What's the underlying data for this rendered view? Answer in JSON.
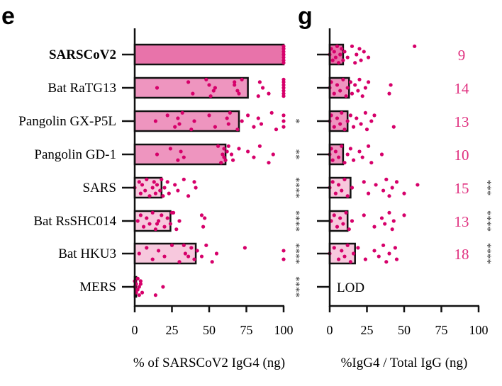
{
  "colors": {
    "dot": "#d6006a",
    "bar_dark": "#e873aa",
    "bar_mid": "#ee95bf",
    "bar_light": "#f7c8dd",
    "count": "#e0307f"
  },
  "chart_data": [
    {
      "type": "bar",
      "panel": "e",
      "orientation": "horizontal",
      "xlabel": "% of SARSCoV2 IgG4 (ng)",
      "xlim": [
        0,
        100
      ],
      "xticks": [
        "0",
        "25",
        "50",
        "75",
        "100"
      ],
      "categories": [
        "SARSCoV2",
        "Bat RaTG13",
        "Pangolin GX-P5L",
        "Pangolin GD-1",
        "SARS",
        "Bat RsSHC014",
        "Bat HKU3",
        "MERS"
      ],
      "values": [
        100,
        76,
        70,
        61,
        18,
        24,
        41,
        1
      ],
      "significance": [
        "",
        "",
        "*",
        "**",
        "****",
        "****",
        "****",
        "****"
      ],
      "points": [
        [
          100,
          100,
          100,
          100,
          100,
          100,
          100,
          100,
          100
        ],
        [
          15,
          36,
          39,
          50,
          53,
          48,
          51,
          54,
          67,
          70,
          67,
          69,
          72,
          83,
          86,
          84,
          90,
          100,
          100,
          100,
          100,
          100,
          100,
          100
        ],
        [
          14,
          22,
          27,
          29,
          30,
          32,
          38,
          40,
          50,
          54,
          62,
          63,
          64,
          69,
          72,
          76,
          80,
          83,
          85,
          92,
          95,
          100,
          100,
          100
        ],
        [
          15,
          24,
          29,
          31,
          33,
          56,
          58,
          59,
          60,
          61,
          62,
          60,
          63,
          58,
          65,
          70,
          66,
          76,
          80,
          84,
          90,
          93
        ],
        [
          0,
          3,
          4,
          5,
          7,
          8,
          10,
          12,
          13,
          14,
          15,
          17,
          18,
          19,
          20,
          22,
          23,
          27,
          29,
          33,
          36,
          41,
          40
        ],
        [
          2,
          4,
          6,
          8,
          10,
          12,
          14,
          16,
          18,
          20,
          22,
          24,
          26,
          28,
          30,
          45,
          46,
          47,
          15,
          25
        ],
        [
          3,
          8,
          12,
          16,
          20,
          25,
          30,
          34,
          38,
          40,
          42,
          45,
          48,
          52,
          55,
          74,
          100,
          100,
          36,
          33
        ],
        [
          0,
          0,
          1,
          1,
          2,
          2,
          3,
          3,
          4,
          5,
          4,
          1,
          2,
          14,
          19
        ]
      ]
    },
    {
      "type": "bar",
      "panel": "g",
      "orientation": "horizontal",
      "xlabel": "%IgG4 / Total IgG (ng)",
      "xlim": [
        0,
        100
      ],
      "xticks": [
        "0",
        "25",
        "50",
        "75",
        "100"
      ],
      "categories": [
        "SARSCoV2",
        "Bat RaTG13",
        "Pangolin GX-P5L",
        "Pangolin GD-1",
        "SARS",
        "Bat RsSHC014",
        "Bat HKU3",
        "MERS"
      ],
      "values": [
        9,
        13,
        12,
        9,
        14,
        12,
        17,
        null
      ],
      "counts": [
        "9",
        "14",
        "13",
        "10",
        "15",
        "13",
        "18",
        "LOD"
      ],
      "significance": [
        "",
        "",
        "",
        "",
        "***",
        "****",
        "****",
        ""
      ],
      "points": [
        [
          0,
          1,
          2,
          3,
          4,
          5,
          6,
          7,
          8,
          9,
          10,
          12,
          15,
          17,
          18,
          20,
          21,
          23,
          26,
          57
        ],
        [
          0,
          1,
          3,
          5,
          7,
          9,
          11,
          12,
          14,
          15,
          17,
          19,
          20,
          22,
          24,
          26,
          40,
          41
        ],
        [
          0,
          1,
          3,
          5,
          7,
          8,
          10,
          12,
          14,
          16,
          18,
          21,
          24,
          25,
          28,
          30,
          43
        ],
        [
          0,
          1,
          2,
          4,
          6,
          8,
          10,
          12,
          14,
          16,
          20,
          22,
          26,
          28,
          35
        ],
        [
          0,
          2,
          4,
          6,
          8,
          10,
          12,
          15,
          23,
          26,
          31,
          36,
          38,
          40,
          42,
          45,
          50,
          59
        ],
        [
          1,
          3,
          5,
          7,
          9,
          11,
          13,
          15,
          23,
          30,
          35,
          37,
          40,
          42,
          43,
          50
        ],
        [
          0,
          3,
          6,
          8,
          10,
          12,
          14,
          16,
          19,
          24,
          30,
          33,
          36,
          38,
          40,
          44,
          45
        ]
      ]
    }
  ]
}
